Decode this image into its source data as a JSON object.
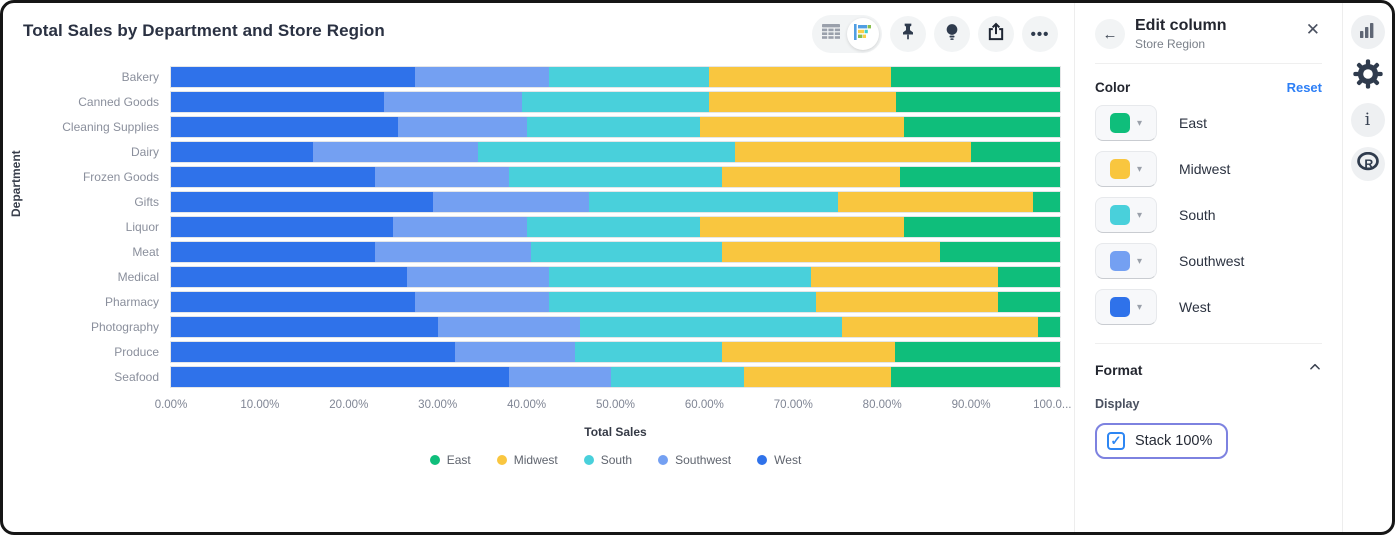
{
  "chart_card": {
    "title": "Total Sales by Department and Store Region",
    "toolbar": {
      "table_toggle": "table-view",
      "chart_toggle": "visualization-view",
      "pin": "pin",
      "lightbulb": "insights",
      "share": "share-export",
      "ellipsis_label": "•••"
    }
  },
  "chart_data": {
    "type": "bar",
    "orientation": "horizontal",
    "stacked": true,
    "stack_100_percent": true,
    "title": "Total Sales by Department and Store Region",
    "xlabel": "Total Sales",
    "ylabel": "Department",
    "xlim": [
      0,
      100
    ],
    "x_ticks": [
      "0.00%",
      "10.00%",
      "20.00%",
      "30.00%",
      "40.00%",
      "50.00%",
      "60.00%",
      "70.00%",
      "80.00%",
      "90.00%",
      "100.0..."
    ],
    "grid": false,
    "legend_position": "bottom",
    "legend": [
      "East",
      "Midwest",
      "South",
      "Southwest",
      "West"
    ],
    "stack_order_from_axis": [
      "West",
      "Southwest",
      "South",
      "Midwest",
      "East"
    ],
    "categories": [
      "Bakery",
      "Canned Goods",
      "Cleaning Supplies",
      "Dairy",
      "Frozen Goods",
      "Gifts",
      "Liquor",
      "Meat",
      "Medical",
      "Pharmacy",
      "Photography",
      "Produce",
      "Seafood"
    ],
    "series": [
      {
        "name": "East",
        "color": "#0fbe7b",
        "values": [
          19,
          18.5,
          17.5,
          10,
          18,
          3,
          17.5,
          13.5,
          7,
          7,
          2.5,
          18.5,
          19
        ]
      },
      {
        "name": "Midwest",
        "color": "#f9c63f",
        "values": [
          20.5,
          21,
          23,
          26.5,
          20,
          22,
          23,
          24.5,
          21,
          20.5,
          22,
          19.5,
          16.5
        ]
      },
      {
        "name": "South",
        "color": "#49d0db",
        "values": [
          18,
          21,
          19.5,
          29,
          24,
          28,
          19.5,
          21.5,
          29.5,
          30,
          29.5,
          16.5,
          15
        ]
      },
      {
        "name": "Southwest",
        "color": "#74a0f2",
        "values": [
          15,
          15.5,
          14.5,
          18.5,
          15,
          17.5,
          15,
          17.5,
          16,
          15,
          16,
          13.5,
          11.5
        ]
      },
      {
        "name": "West",
        "color": "#2f72ea",
        "values": [
          27.5,
          24,
          25.5,
          16,
          23,
          29.5,
          25,
          23,
          26.5,
          27.5,
          30,
          32,
          38
        ]
      }
    ]
  },
  "edit_panel": {
    "title": "Edit column",
    "subtitle": "Store Region",
    "color_section": {
      "label": "Color",
      "reset_label": "Reset",
      "items": [
        {
          "label": "East",
          "color": "#0fbe7b"
        },
        {
          "label": "Midwest",
          "color": "#f9c63f"
        },
        {
          "label": "South",
          "color": "#49d0db"
        },
        {
          "label": "Southwest",
          "color": "#74a0f2"
        },
        {
          "label": "West",
          "color": "#2f72ea"
        }
      ]
    },
    "format_section": {
      "label": "Format",
      "display_label": "Display",
      "stack_checkbox": {
        "label": "Stack 100%",
        "checked": true
      }
    }
  },
  "right_rail": {
    "icons": [
      {
        "name": "bar-chart"
      },
      {
        "name": "settings-gear",
        "active": true
      },
      {
        "name": "info"
      },
      {
        "name": "r-logo"
      }
    ]
  }
}
